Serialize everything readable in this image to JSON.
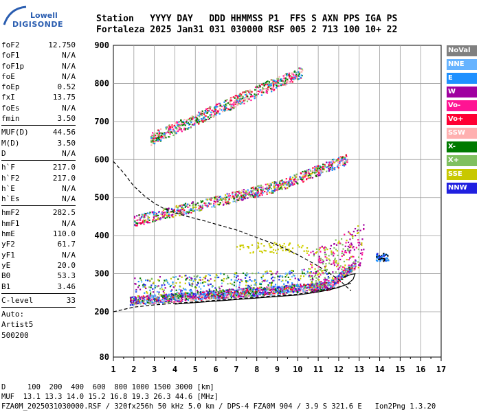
{
  "logo": {
    "line1": "Lowell",
    "line2": "DIGISONDE"
  },
  "header": {
    "line1": "Station   YYYY DAY   DDD HHMMSS P1  FFS S AXN PPS IGA PS",
    "line2": "Fortaleza 2025 Jan31 031 030000 RSF 005 2 713 100 10+ 22"
  },
  "params": [
    {
      "name": "foF2",
      "value": "12.750"
    },
    {
      "name": "foF1",
      "value": "N/A"
    },
    {
      "name": "foF1p",
      "value": "N/A"
    },
    {
      "name": "foE",
      "value": "N/A"
    },
    {
      "name": "foEp",
      "value": "0.52"
    },
    {
      "name": "fxI",
      "value": "13.75"
    },
    {
      "name": "foEs",
      "value": "N/A"
    },
    {
      "name": "fmin",
      "value": "3.50"
    },
    {
      "sep": true
    },
    {
      "name": "MUF(D)",
      "value": "44.56"
    },
    {
      "name": "M(D)",
      "value": "3.50"
    },
    {
      "name": "D",
      "value": "N/A"
    },
    {
      "sep": true
    },
    {
      "name": "h`F",
      "value": "217.0"
    },
    {
      "name": "h`F2",
      "value": "217.0"
    },
    {
      "name": "h`E",
      "value": "N/A"
    },
    {
      "name": "h`Es",
      "value": "N/A"
    },
    {
      "sep": true
    },
    {
      "name": "hmF2",
      "value": "282.5"
    },
    {
      "name": "hmF1",
      "value": "N/A"
    },
    {
      "name": "hmE",
      "value": "110.0"
    },
    {
      "name": "yF2",
      "value": "61.7"
    },
    {
      "name": "yF1",
      "value": "N/A"
    },
    {
      "name": "yE",
      "value": "20.0"
    },
    {
      "name": "B0",
      "value": "53.3"
    },
    {
      "name": "B1",
      "value": "3.46"
    },
    {
      "sep": true
    },
    {
      "name": "C-level",
      "value": "33"
    },
    {
      "sep": true
    },
    {
      "name": "Auto:",
      "value": ""
    },
    {
      "name": "Artist5",
      "value": ""
    },
    {
      "name": "500200",
      "value": ""
    }
  ],
  "legend": [
    {
      "label": "NoVal",
      "color": "#808080"
    },
    {
      "label": "NNE",
      "color": "#66b3ff"
    },
    {
      "label": "E",
      "color": "#1e90ff"
    },
    {
      "label": "W",
      "color": "#a000a0"
    },
    {
      "label": "Vo-",
      "color": "#ff1493"
    },
    {
      "label": "Vo+",
      "color": "#ff0033"
    },
    {
      "label": "SSW",
      "color": "#ffb0b0"
    },
    {
      "label": "X-",
      "color": "#007a00"
    },
    {
      "label": "X+",
      "color": "#80c060"
    },
    {
      "label": "SSE",
      "color": "#c8c800"
    },
    {
      "label": "NNW",
      "color": "#2020e0"
    }
  ],
  "chart_data": {
    "type": "scatter",
    "xlim": [
      1,
      17
    ],
    "ylim": [
      80,
      900
    ],
    "x_ticks": [
      "1",
      "2",
      "3",
      "4",
      "5",
      "6",
      "7",
      "8",
      "9",
      "10",
      "11",
      "12",
      "13",
      "14",
      "15",
      "16",
      "17"
    ],
    "y_ticks": [
      "80",
      "200",
      "300",
      "400",
      "500",
      "600",
      "700",
      "800",
      "900"
    ],
    "grid": true,
    "traces": [
      {
        "name": "profile-upper",
        "style": "dashed",
        "x": [
          1.0,
          1.5,
          2.0,
          2.5,
          3.0,
          3.5,
          4.0,
          4.5,
          5.0,
          5.5,
          6.0,
          7.0,
          8.0,
          9.0,
          10.0,
          11.0,
          12.0,
          12.6
        ],
        "y": [
          595,
          565,
          530,
          505,
          485,
          470,
          460,
          452,
          445,
          438,
          430,
          415,
          395,
          375,
          350,
          320,
          285,
          255
        ]
      },
      {
        "name": "profile-lower",
        "style": "dashed",
        "x": [
          1.0,
          2.0,
          3.0,
          4.0,
          5.0,
          6.0,
          7.0,
          8.0,
          9.0,
          10.0,
          11.0,
          12.0,
          12.6
        ],
        "y": [
          200,
          212,
          218,
          222,
          226,
          230,
          234,
          238,
          242,
          246,
          255,
          265,
          275
        ]
      },
      {
        "name": "profile-trace",
        "style": "solid",
        "x": [
          4.0,
          5.0,
          6.0,
          7.0,
          8.0,
          9.0,
          10.0,
          11.0,
          11.5,
          12.0,
          12.4,
          12.7,
          12.8,
          12.6,
          12.2
        ],
        "y": [
          220,
          224,
          228,
          232,
          236,
          240,
          244,
          252,
          257,
          264,
          272,
          285,
          300,
          298,
          290
        ]
      }
    ],
    "echo_bands": [
      {
        "band": "F-o",
        "x": [
          1.8,
          12.8
        ],
        "y": [
          230,
          310
        ]
      },
      {
        "band": "2F",
        "x": [
          2.0,
          12.6
        ],
        "y": [
          440,
          630
        ]
      },
      {
        "band": "3F",
        "x": [
          2.8,
          10.2
        ],
        "y": [
          650,
          840
        ]
      }
    ]
  },
  "footer": {
    "line1": "D     100  200  400  600  800 1000 1500 3000 [km]",
    "line2": "MUF  13.1 13.3 14.0 15.2 16.8 19.3 26.3 44.6 [MHz]",
    "line3": "FZA0M_2025031030000.RSF / 320fx256h 50 kHz 5.0 km / DPS-4 FZA0M 904 / 3.9 S 321.6 E   Ion2Png 1.3.20"
  }
}
